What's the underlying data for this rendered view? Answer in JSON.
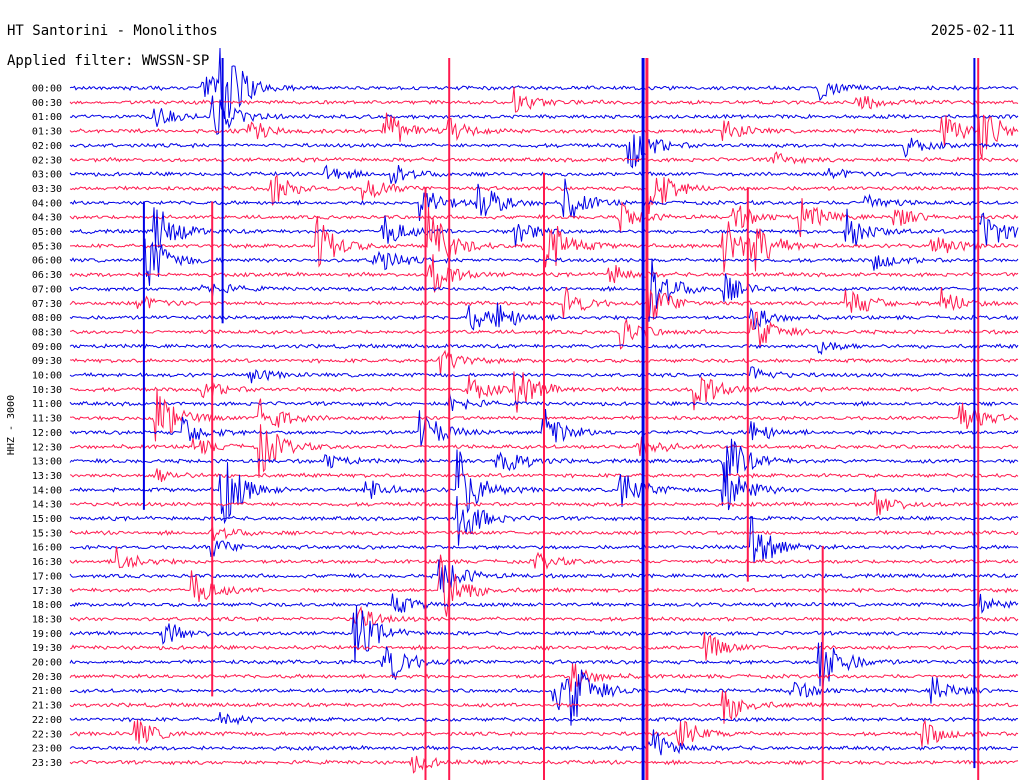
{
  "header": {
    "station": "HT Santorini - Monolithos",
    "date": "2025-02-11",
    "filter": "Applied filter: WWSSN-SP"
  },
  "chart_data": {
    "type": "line",
    "title": "HT Santorini - Monolithos",
    "ylabel": "HHZ - 3000",
    "row_labels": [
      "00:00",
      "00:30",
      "01:00",
      "01:30",
      "02:00",
      "02:30",
      "03:00",
      "03:30",
      "04:00",
      "04:30",
      "05:00",
      "05:30",
      "06:00",
      "06:30",
      "07:00",
      "07:30",
      "08:00",
      "08:30",
      "09:00",
      "09:30",
      "10:00",
      "10:30",
      "11:00",
      "11:30",
      "12:00",
      "12:30",
      "13:00",
      "13:30",
      "14:00",
      "14:30",
      "15:00",
      "15:30",
      "16:00",
      "16:30",
      "17:00",
      "17:30",
      "18:00",
      "18:30",
      "19:00",
      "19:30",
      "20:00",
      "20:30",
      "21:00",
      "21:30",
      "22:00",
      "22:30",
      "23:00",
      "23:30"
    ],
    "colors": [
      "#0000e6",
      "#ff1a4f"
    ],
    "events": [
      {
        "row": 0,
        "t": 0.16,
        "amp": 45
      },
      {
        "row": 0,
        "t": 0.14,
        "amp": 20
      },
      {
        "row": 0,
        "t": 0.79,
        "amp": 12
      },
      {
        "row": 1,
        "t": 0.47,
        "amp": 15
      },
      {
        "row": 1,
        "t": 0.83,
        "amp": 10
      },
      {
        "row": 2,
        "t": 0.09,
        "amp": 10
      },
      {
        "row": 2,
        "t": 0.15,
        "amp": 25
      },
      {
        "row": 3,
        "t": 0.19,
        "amp": 12
      },
      {
        "row": 3,
        "t": 0.33,
        "amp": 25
      },
      {
        "row": 3,
        "t": 0.4,
        "amp": 12
      },
      {
        "row": 3,
        "t": 0.69,
        "amp": 12
      },
      {
        "row": 3,
        "t": 0.92,
        "amp": 20
      },
      {
        "row": 3,
        "t": 0.96,
        "amp": 30
      },
      {
        "row": 4,
        "t": 0.59,
        "amp": 30
      },
      {
        "row": 4,
        "t": 0.88,
        "amp": 10
      },
      {
        "row": 5,
        "t": 0.74,
        "amp": 8
      },
      {
        "row": 6,
        "t": 0.27,
        "amp": 10
      },
      {
        "row": 6,
        "t": 0.34,
        "amp": 12
      },
      {
        "row": 6,
        "t": 0.8,
        "amp": 8
      },
      {
        "row": 7,
        "t": 0.21,
        "amp": 20
      },
      {
        "row": 7,
        "t": 0.31,
        "amp": 15
      },
      {
        "row": 7,
        "t": 0.61,
        "amp": 35
      },
      {
        "row": 8,
        "t": 0.37,
        "amp": 22
      },
      {
        "row": 8,
        "t": 0.43,
        "amp": 25
      },
      {
        "row": 8,
        "t": 0.52,
        "amp": 25
      },
      {
        "row": 8,
        "t": 0.84,
        "amp": 10
      },
      {
        "row": 9,
        "t": 0.58,
        "amp": 15
      },
      {
        "row": 9,
        "t": 0.7,
        "amp": 15
      },
      {
        "row": 9,
        "t": 0.77,
        "amp": 20
      },
      {
        "row": 9,
        "t": 0.87,
        "amp": 12
      },
      {
        "row": 10,
        "t": 0.09,
        "amp": 30
      },
      {
        "row": 10,
        "t": 0.33,
        "amp": 20
      },
      {
        "row": 10,
        "t": 0.47,
        "amp": 15
      },
      {
        "row": 10,
        "t": 0.82,
        "amp": 25
      },
      {
        "row": 10,
        "t": 0.96,
        "amp": 30
      },
      {
        "row": 11,
        "t": 0.26,
        "amp": 30
      },
      {
        "row": 11,
        "t": 0.38,
        "amp": 40
      },
      {
        "row": 11,
        "t": 0.5,
        "amp": 40
      },
      {
        "row": 11,
        "t": 0.69,
        "amp": 30
      },
      {
        "row": 11,
        "t": 0.72,
        "amp": 25
      },
      {
        "row": 11,
        "t": 0.91,
        "amp": 15
      },
      {
        "row": 12,
        "t": 0.08,
        "amp": 35
      },
      {
        "row": 12,
        "t": 0.32,
        "amp": 20
      },
      {
        "row": 12,
        "t": 0.85,
        "amp": 10
      },
      {
        "row": 13,
        "t": 0.38,
        "amp": 25
      },
      {
        "row": 13,
        "t": 0.57,
        "amp": 12
      },
      {
        "row": 14,
        "t": 0.14,
        "amp": 12
      },
      {
        "row": 14,
        "t": 0.61,
        "amp": 40
      },
      {
        "row": 14,
        "t": 0.69,
        "amp": 15
      },
      {
        "row": 15,
        "t": 0.07,
        "amp": 10
      },
      {
        "row": 15,
        "t": 0.52,
        "amp": 20
      },
      {
        "row": 15,
        "t": 0.61,
        "amp": 25
      },
      {
        "row": 15,
        "t": 0.82,
        "amp": 20
      },
      {
        "row": 15,
        "t": 0.92,
        "amp": 15
      },
      {
        "row": 16,
        "t": 0.42,
        "amp": 15
      },
      {
        "row": 16,
        "t": 0.45,
        "amp": 15
      },
      {
        "row": 16,
        "t": 0.72,
        "amp": 12
      },
      {
        "row": 17,
        "t": 0.58,
        "amp": 20
      },
      {
        "row": 17,
        "t": 0.72,
        "amp": 25
      },
      {
        "row": 18,
        "t": 0.79,
        "amp": 8
      },
      {
        "row": 19,
        "t": 0.39,
        "amp": 15
      },
      {
        "row": 20,
        "t": 0.19,
        "amp": 8
      },
      {
        "row": 20,
        "t": 0.72,
        "amp": 8
      },
      {
        "row": 21,
        "t": 0.14,
        "amp": 10
      },
      {
        "row": 21,
        "t": 0.42,
        "amp": 15
      },
      {
        "row": 21,
        "t": 0.47,
        "amp": 25
      },
      {
        "row": 21,
        "t": 0.66,
        "amp": 25
      },
      {
        "row": 22,
        "t": 0.4,
        "amp": 12
      },
      {
        "row": 23,
        "t": 0.09,
        "amp": 35
      },
      {
        "row": 23,
        "t": 0.2,
        "amp": 25
      },
      {
        "row": 23,
        "t": 0.94,
        "amp": 20
      },
      {
        "row": 24,
        "t": 0.12,
        "amp": 15
      },
      {
        "row": 24,
        "t": 0.37,
        "amp": 25
      },
      {
        "row": 24,
        "t": 0.5,
        "amp": 25
      },
      {
        "row": 24,
        "t": 0.72,
        "amp": 12
      },
      {
        "row": 25,
        "t": 0.13,
        "amp": 10
      },
      {
        "row": 25,
        "t": 0.2,
        "amp": 30
      },
      {
        "row": 25,
        "t": 0.6,
        "amp": 15
      },
      {
        "row": 26,
        "t": 0.27,
        "amp": 8
      },
      {
        "row": 26,
        "t": 0.45,
        "amp": 25
      },
      {
        "row": 26,
        "t": 0.69,
        "amp": 35
      },
      {
        "row": 27,
        "t": 0.09,
        "amp": 8
      },
      {
        "row": 28,
        "t": 0.16,
        "amp": 40
      },
      {
        "row": 28,
        "t": 0.31,
        "amp": 15
      },
      {
        "row": 28,
        "t": 0.41,
        "amp": 40
      },
      {
        "row": 28,
        "t": 0.58,
        "amp": 25
      },
      {
        "row": 28,
        "t": 0.69,
        "amp": 35
      },
      {
        "row": 29,
        "t": 0.85,
        "amp": 15
      },
      {
        "row": 30,
        "t": 0.41,
        "amp": 30
      },
      {
        "row": 31,
        "t": 0.15,
        "amp": 10
      },
      {
        "row": 32,
        "t": 0.15,
        "amp": 10
      },
      {
        "row": 32,
        "t": 0.72,
        "amp": 30
      },
      {
        "row": 33,
        "t": 0.05,
        "amp": 15
      },
      {
        "row": 33,
        "t": 0.49,
        "amp": 10
      },
      {
        "row": 34,
        "t": 0.39,
        "amp": 25
      },
      {
        "row": 35,
        "t": 0.13,
        "amp": 20
      },
      {
        "row": 35,
        "t": 0.39,
        "amp": 40
      },
      {
        "row": 36,
        "t": 0.34,
        "amp": 12
      },
      {
        "row": 36,
        "t": 0.96,
        "amp": 10
      },
      {
        "row": 37,
        "t": 0.3,
        "amp": 15
      },
      {
        "row": 38,
        "t": 0.1,
        "amp": 12
      },
      {
        "row": 38,
        "t": 0.3,
        "amp": 35
      },
      {
        "row": 39,
        "t": 0.67,
        "amp": 15
      },
      {
        "row": 40,
        "t": 0.33,
        "amp": 35
      },
      {
        "row": 40,
        "t": 0.79,
        "amp": 40
      },
      {
        "row": 41,
        "t": 0.53,
        "amp": 15
      },
      {
        "row": 42,
        "t": 0.51,
        "amp": 25
      },
      {
        "row": 42,
        "t": 0.53,
        "amp": 30
      },
      {
        "row": 42,
        "t": 0.76,
        "amp": 12
      },
      {
        "row": 42,
        "t": 0.91,
        "amp": 15
      },
      {
        "row": 43,
        "t": 0.69,
        "amp": 20
      },
      {
        "row": 44,
        "t": 0.16,
        "amp": 8
      },
      {
        "row": 45,
        "t": 0.07,
        "amp": 15
      },
      {
        "row": 45,
        "t": 0.64,
        "amp": 20
      },
      {
        "row": 45,
        "t": 0.9,
        "amp": 15
      },
      {
        "row": 46,
        "t": 0.61,
        "amp": 25
      },
      {
        "row": 47,
        "t": 0.36,
        "amp": 10
      }
    ],
    "long_traces": [
      {
        "t": 0.604,
        "from_row": 0,
        "to_row": 47
      },
      {
        "t": 0.608,
        "from_row": 0,
        "to_row": 47
      },
      {
        "t": 0.954,
        "from_row": 0,
        "to_row": 46
      },
      {
        "t": 0.958,
        "from_row": 0,
        "to_row": 47
      },
      {
        "t": 0.375,
        "from_row": 9,
        "to_row": 47
      },
      {
        "t": 0.4,
        "from_row": 0,
        "to_row": 47
      },
      {
        "t": 0.078,
        "from_row": 10,
        "to_row": 28
      },
      {
        "t": 0.15,
        "from_row": 10,
        "to_row": 41
      },
      {
        "t": 0.161,
        "from_row": 0,
        "to_row": 15
      },
      {
        "t": 0.5,
        "from_row": 8,
        "to_row": 47
      },
      {
        "t": 0.715,
        "from_row": 9,
        "to_row": 33
      },
      {
        "t": 0.794,
        "from_row": 34,
        "to_row": 47
      }
    ]
  }
}
